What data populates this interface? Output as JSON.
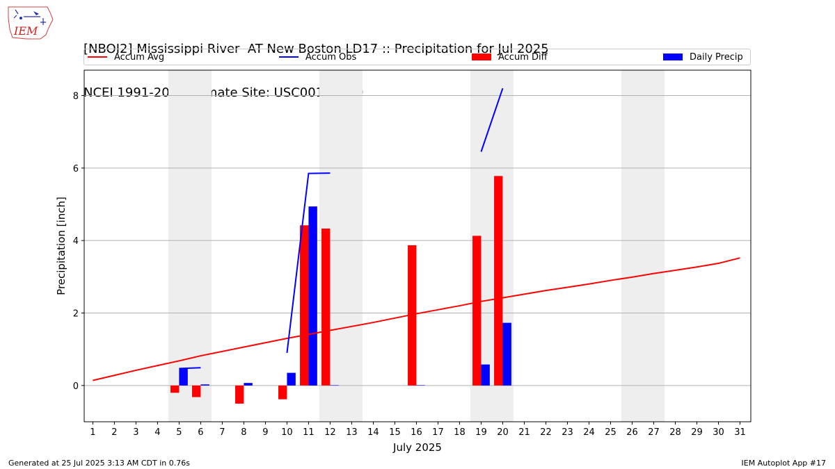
{
  "header": {
    "title_line1": "[NBOI2] Mississippi River  AT New Boston LD17 :: Precipitation for Jul 2025",
    "title_line2": "NCEI 1991-2020 Climate Site: USC00116080",
    "logo_text": "IEM"
  },
  "footer": {
    "generated": "Generated at 25 Jul 2025 3:13 AM CDT in 0.76s",
    "app": "IEM Autoplot App #17"
  },
  "colors": {
    "accum_avg": "#ff0000",
    "accum_obs": "#0000ff",
    "accum_diff": "#ff0000",
    "daily_precip": "#0000ff",
    "weekend_shade": "#eeeeee",
    "grid": "#b0b0b0"
  },
  "chart_data": {
    "type": "bar",
    "title": "[NBOI2] Mississippi River  AT New Boston LD17 :: Precipitation for Jul 2025",
    "subtitle": "NCEI 1991-2020 Climate Site: USC00116080",
    "xlabel": "July 2025",
    "ylabel": "Precipitation [inch]",
    "xlim": [
      0.6,
      31.5
    ],
    "ylim": [
      -1.0,
      8.7
    ],
    "yticks": [
      0,
      2,
      4,
      6,
      8
    ],
    "x_ticks": [
      1,
      2,
      3,
      4,
      5,
      6,
      7,
      8,
      9,
      10,
      11,
      12,
      13,
      14,
      15,
      16,
      17,
      18,
      19,
      20,
      21,
      22,
      23,
      24,
      25,
      26,
      27,
      28,
      29,
      30,
      31
    ],
    "grid": "horizontal",
    "legend_placement": "top",
    "weekend_shading": [
      [
        5,
        6
      ],
      [
        12,
        13
      ],
      [
        19,
        20
      ],
      [
        26,
        27
      ]
    ],
    "legend": [
      "Accum Avg",
      "Accum Obs",
      "Accum Diff",
      "Daily Precip"
    ],
    "series": [
      {
        "name": "Accum Avg",
        "type": "line",
        "x": [
          1,
          2,
          3,
          4,
          5,
          6,
          7,
          8,
          9,
          10,
          11,
          12,
          13,
          14,
          15,
          16,
          17,
          18,
          19,
          20,
          21,
          22,
          23,
          24,
          25,
          26,
          27,
          28,
          29,
          30,
          31
        ],
        "values": [
          0.14,
          0.28,
          0.42,
          0.55,
          0.68,
          0.82,
          0.94,
          1.06,
          1.18,
          1.3,
          1.41,
          1.52,
          1.63,
          1.74,
          1.86,
          1.98,
          2.09,
          2.2,
          2.32,
          2.42,
          2.52,
          2.62,
          2.71,
          2.8,
          2.9,
          2.99,
          3.09,
          3.18,
          3.27,
          3.37,
          3.52
        ]
      },
      {
        "name": "Accum Obs",
        "type": "line",
        "segments": [
          {
            "x": [
              5,
              6
            ],
            "values": [
              0.47,
              0.49
            ]
          },
          {
            "x": [
              10,
              11,
              12
            ],
            "values": [
              0.9,
              5.85,
              5.86
            ]
          },
          {
            "x": [
              19,
              20
            ],
            "values": [
              6.45,
              8.2
            ]
          }
        ]
      },
      {
        "name": "Accum Diff",
        "type": "bar",
        "x": [
          5,
          6,
          8,
          10,
          11,
          12,
          16,
          19,
          20
        ],
        "values": [
          -0.2,
          -0.32,
          -0.5,
          -0.38,
          4.42,
          4.33,
          3.87,
          4.13,
          5.78
        ]
      },
      {
        "name": "Daily Precip",
        "type": "bar",
        "x": [
          5,
          6,
          8,
          10,
          11,
          12,
          16,
          19,
          20
        ],
        "values": [
          0.47,
          0.03,
          0.07,
          0.35,
          4.94,
          0.01,
          0.01,
          0.58,
          1.73
        ]
      }
    ]
  }
}
